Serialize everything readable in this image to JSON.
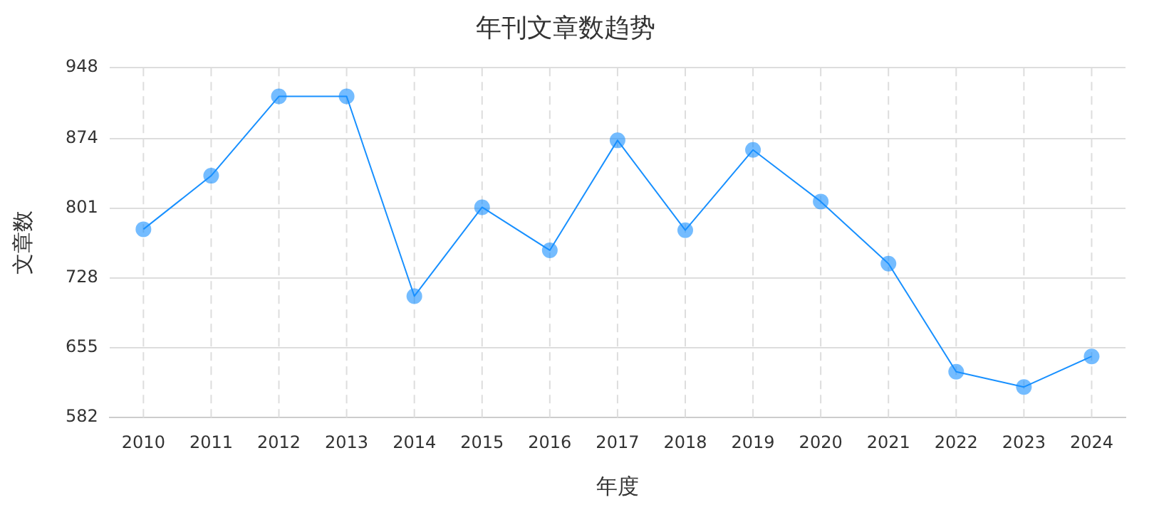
{
  "chart_data": {
    "type": "line",
    "title": "年刊文章数趋势",
    "xlabel": "年度",
    "ylabel": "文章数",
    "categories": [
      "2010",
      "2011",
      "2012",
      "2013",
      "2014",
      "2015",
      "2016",
      "2017",
      "2018",
      "2019",
      "2020",
      "2021",
      "2022",
      "2023",
      "2024"
    ],
    "series": [
      {
        "color": "#1890ff",
        "values": [
          779,
          835,
          918,
          918,
          709,
          802,
          757,
          872,
          778,
          862,
          808,
          743,
          630,
          614,
          646
        ]
      }
    ],
    "ylim": [
      582,
      948
    ],
    "yticks": [
      582,
      655,
      728,
      801,
      874,
      948
    ],
    "grid": true,
    "marker": "circle",
    "line_style": "solid",
    "legend": false
  }
}
